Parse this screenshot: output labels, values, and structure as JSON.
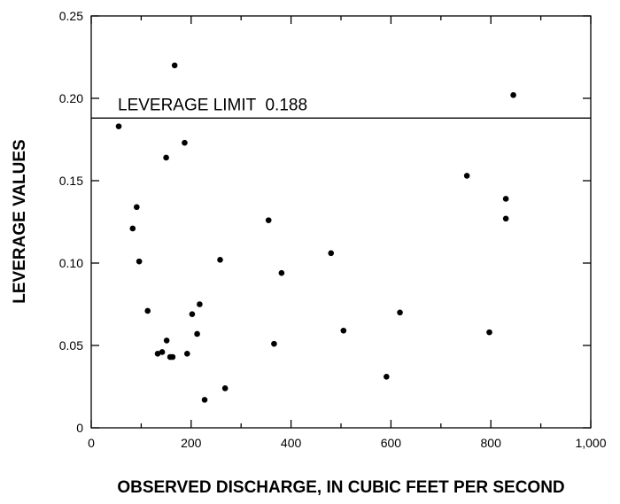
{
  "chart_data": {
    "type": "scatter",
    "title": "",
    "xlabel": "OBSERVED DISCHARGE, IN CUBIC FEET PER SECOND",
    "ylabel": "LEVERAGE VALUES",
    "xlim": [
      0,
      1000
    ],
    "ylim": [
      0,
      0.25
    ],
    "x_ticks": [
      0,
      200,
      400,
      600,
      800,
      1000
    ],
    "x_tick_labels": [
      "0",
      "200",
      "400",
      "600",
      "800",
      "1,000"
    ],
    "y_ticks": [
      0,
      0.05,
      0.1,
      0.15,
      0.2,
      0.25
    ],
    "y_tick_labels": [
      "0",
      "0.05",
      "0.10",
      "0.15",
      "0.20",
      "0.25"
    ],
    "grid": false,
    "legend": "none",
    "reference_line": {
      "y": 0.188,
      "label": "LEVERAGE LIMIT  0.188"
    },
    "points": [
      {
        "x": 55,
        "y": 0.183
      },
      {
        "x": 83,
        "y": 0.121
      },
      {
        "x": 91,
        "y": 0.134
      },
      {
        "x": 96,
        "y": 0.101
      },
      {
        "x": 113,
        "y": 0.071
      },
      {
        "x": 133,
        "y": 0.045
      },
      {
        "x": 142,
        "y": 0.046
      },
      {
        "x": 150,
        "y": 0.164
      },
      {
        "x": 151,
        "y": 0.053
      },
      {
        "x": 158,
        "y": 0.043
      },
      {
        "x": 163,
        "y": 0.043
      },
      {
        "x": 167,
        "y": 0.22
      },
      {
        "x": 187,
        "y": 0.173
      },
      {
        "x": 192,
        "y": 0.045
      },
      {
        "x": 202,
        "y": 0.069
      },
      {
        "x": 212,
        "y": 0.057
      },
      {
        "x": 217,
        "y": 0.075
      },
      {
        "x": 227,
        "y": 0.017
      },
      {
        "x": 258,
        "y": 0.102
      },
      {
        "x": 268,
        "y": 0.024
      },
      {
        "x": 355,
        "y": 0.126
      },
      {
        "x": 366,
        "y": 0.051
      },
      {
        "x": 381,
        "y": 0.094
      },
      {
        "x": 480,
        "y": 0.106
      },
      {
        "x": 505,
        "y": 0.059
      },
      {
        "x": 591,
        "y": 0.031
      },
      {
        "x": 618,
        "y": 0.07
      },
      {
        "x": 752,
        "y": 0.153
      },
      {
        "x": 797,
        "y": 0.058
      },
      {
        "x": 830,
        "y": 0.139
      },
      {
        "x": 830,
        "y": 0.127
      },
      {
        "x": 845,
        "y": 0.202
      }
    ]
  }
}
